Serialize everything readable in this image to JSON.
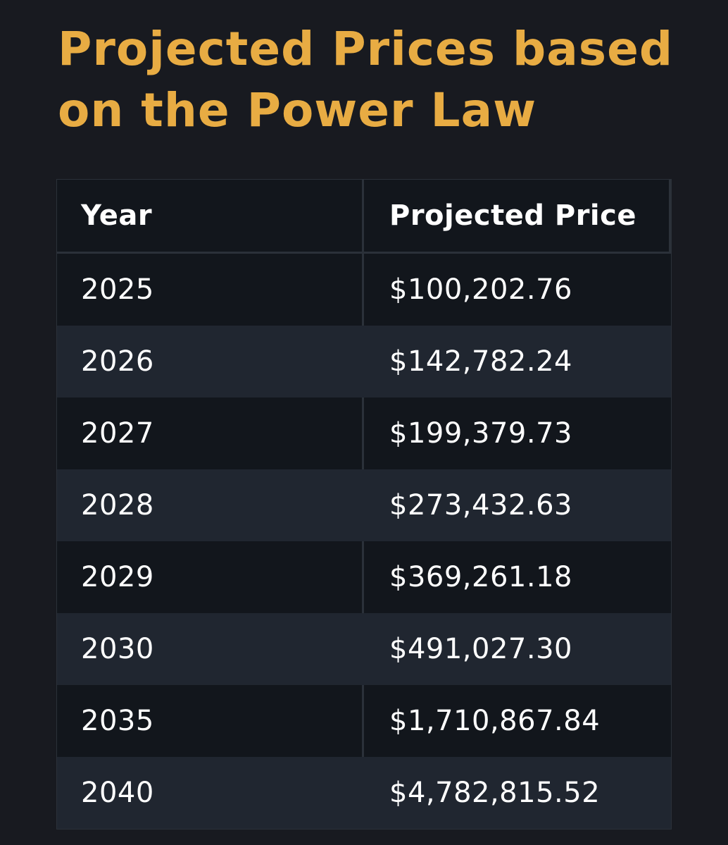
{
  "title": "Projected Prices based on the Power Law",
  "table": {
    "headers": {
      "year": "Year",
      "price": "Projected Price"
    },
    "rows": [
      {
        "year": "2025",
        "price": "$100,202.76"
      },
      {
        "year": "2026",
        "price": "$142,782.24"
      },
      {
        "year": "2027",
        "price": "$199,379.73"
      },
      {
        "year": "2028",
        "price": "$273,432.63"
      },
      {
        "year": "2029",
        "price": "$369,261.18"
      },
      {
        "year": "2030",
        "price": "$491,027.30"
      },
      {
        "year": "2035",
        "price": "$1,710,867.84"
      },
      {
        "year": "2040",
        "price": "$4,782,815.52"
      }
    ]
  },
  "colors": {
    "background": "#181a20",
    "title": "#e8ac43",
    "row_dark": "#12161c",
    "row_light": "#202630",
    "text": "#ffffff"
  }
}
